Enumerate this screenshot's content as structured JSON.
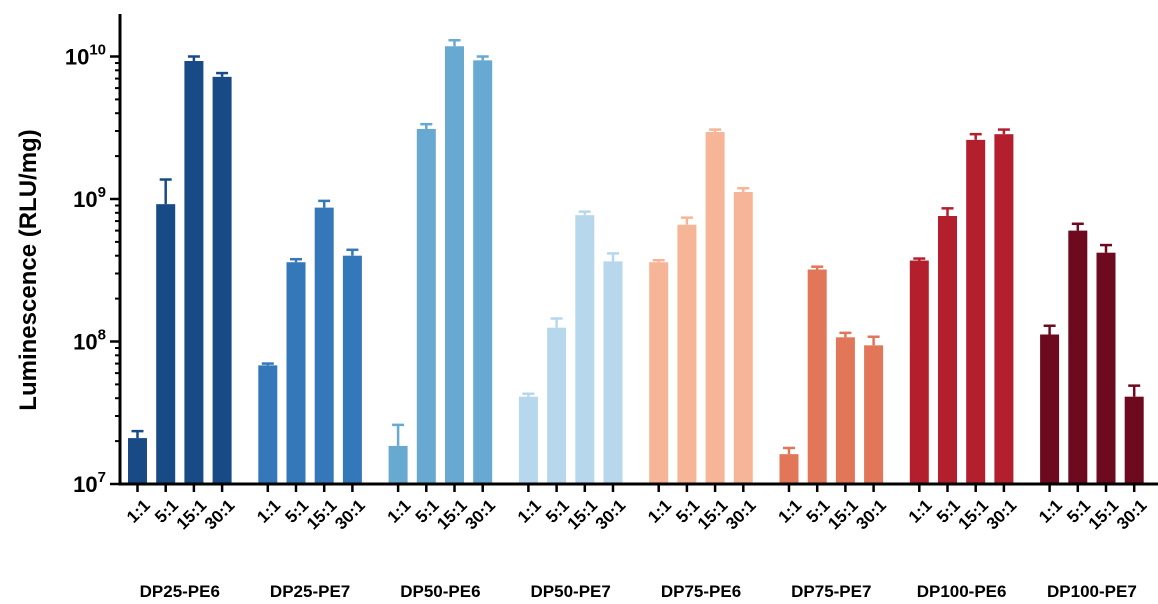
{
  "chart_data": {
    "type": "bar",
    "title": "",
    "ylabel": "Luminescence (RLU/mg)",
    "xlabel": "",
    "yscale": "log",
    "ylim": [
      10000000,
      20000000000
    ],
    "yticks": [
      {
        "value": 10000000,
        "base": "10",
        "exp": "7"
      },
      {
        "value": 100000000,
        "base": "10",
        "exp": "8"
      },
      {
        "value": 1000000000,
        "base": "10",
        "exp": "9"
      },
      {
        "value": 10000000000,
        "base": "10",
        "exp": "10"
      }
    ],
    "grid": false,
    "legend": "none",
    "categories": [
      "1:1",
      "5:1",
      "15:1",
      "30:1"
    ],
    "groups": [
      {
        "name": "DP25-PE6",
        "color": "#184a86",
        "values": [
          21000000,
          920000000,
          9300000000,
          7200000000
        ],
        "errors": [
          2500000,
          450000000,
          700000000,
          450000000
        ]
      },
      {
        "name": "DP25-PE7",
        "color": "#3478ba",
        "values": [
          68000000,
          360000000,
          870000000,
          400000000
        ],
        "errors": [
          2000000,
          18000000,
          100000000,
          40000000
        ]
      },
      {
        "name": "DP50-PE6",
        "color": "#67a9d1",
        "values": [
          18500000,
          3100000000,
          11800000000,
          9400000000
        ],
        "errors": [
          7500000,
          250000000,
          1200000000,
          600000000
        ]
      },
      {
        "name": "DP50-PE7",
        "color": "#b7d7ec",
        "values": [
          41000000,
          125000000,
          770000000,
          365000000
        ],
        "errors": [
          2000000,
          20000000,
          45000000,
          50000000
        ]
      },
      {
        "name": "DP75-PE6",
        "color": "#f6b596",
        "values": [
          360000000,
          660000000,
          2950000000,
          1120000000
        ],
        "errors": [
          12000000,
          80000000,
          120000000,
          70000000
        ]
      },
      {
        "name": "DP75-PE7",
        "color": "#e27659",
        "values": [
          16200000,
          320000000,
          107000000,
          94000000
        ],
        "errors": [
          1700000,
          15000000,
          8000000,
          14000000
        ]
      },
      {
        "name": "DP100-PE6",
        "color": "#b41f2e",
        "values": [
          370000000,
          760000000,
          2600000000,
          2850000000
        ],
        "errors": [
          12000000,
          100000000,
          250000000,
          220000000
        ]
      },
      {
        "name": "DP100-PE7",
        "color": "#6d0a20",
        "values": [
          112000000,
          600000000,
          420000000,
          41000000
        ],
        "errors": [
          17000000,
          70000000,
          55000000,
          8000000
        ]
      }
    ]
  }
}
